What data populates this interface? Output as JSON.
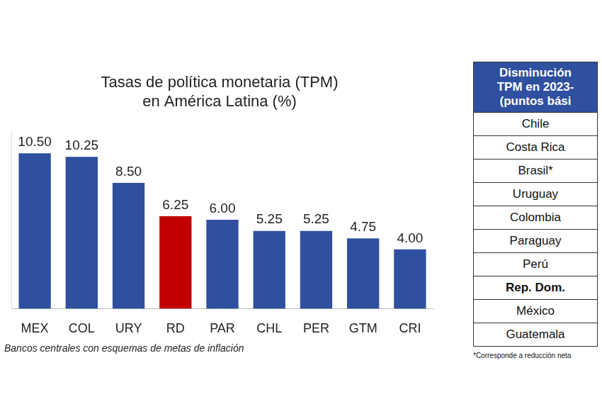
{
  "chart_data": {
    "type": "bar",
    "title": [
      "Tasas de política monetaria (TPM)",
      "en América Latina (%)"
    ],
    "categories": [
      "MEX",
      "COL",
      "URY",
      "RD",
      "PAR",
      "CHL",
      "PER",
      "GTM",
      "CRI"
    ],
    "values": [
      10.5,
      10.25,
      8.5,
      6.25,
      6.0,
      5.25,
      5.25,
      4.75,
      4.0
    ],
    "value_labels": [
      "10.50",
      "10.25",
      "8.50",
      "6.25",
      "6.00",
      "5.25",
      "5.25",
      "4.75",
      "4.00"
    ],
    "colors": [
      "#2f4f9f",
      "#2f4f9f",
      "#2f4f9f",
      "#c00000",
      "#2f4f9f",
      "#2f4f9f",
      "#2f4f9f",
      "#2f4f9f",
      "#2f4f9f"
    ],
    "ylim": [
      0,
      12
    ],
    "data_labels": true,
    "grid": false,
    "tick_labels": "x",
    "note": "Bancos centrales con esquemas de metas de inflación"
  },
  "table": {
    "header": [
      "Disminución",
      "TPM en 2023-",
      "(puntos bási"
    ],
    "rows": [
      "Chile",
      "Costa Rica",
      "Brasil*",
      "Uruguay",
      "Colombia",
      "Paraguay",
      "Perú",
      "Rep. Dom.",
      "México",
      "Guatemala"
    ],
    "highlight": "Rep. Dom.",
    "note": "*Corresponde a reducción neta"
  }
}
